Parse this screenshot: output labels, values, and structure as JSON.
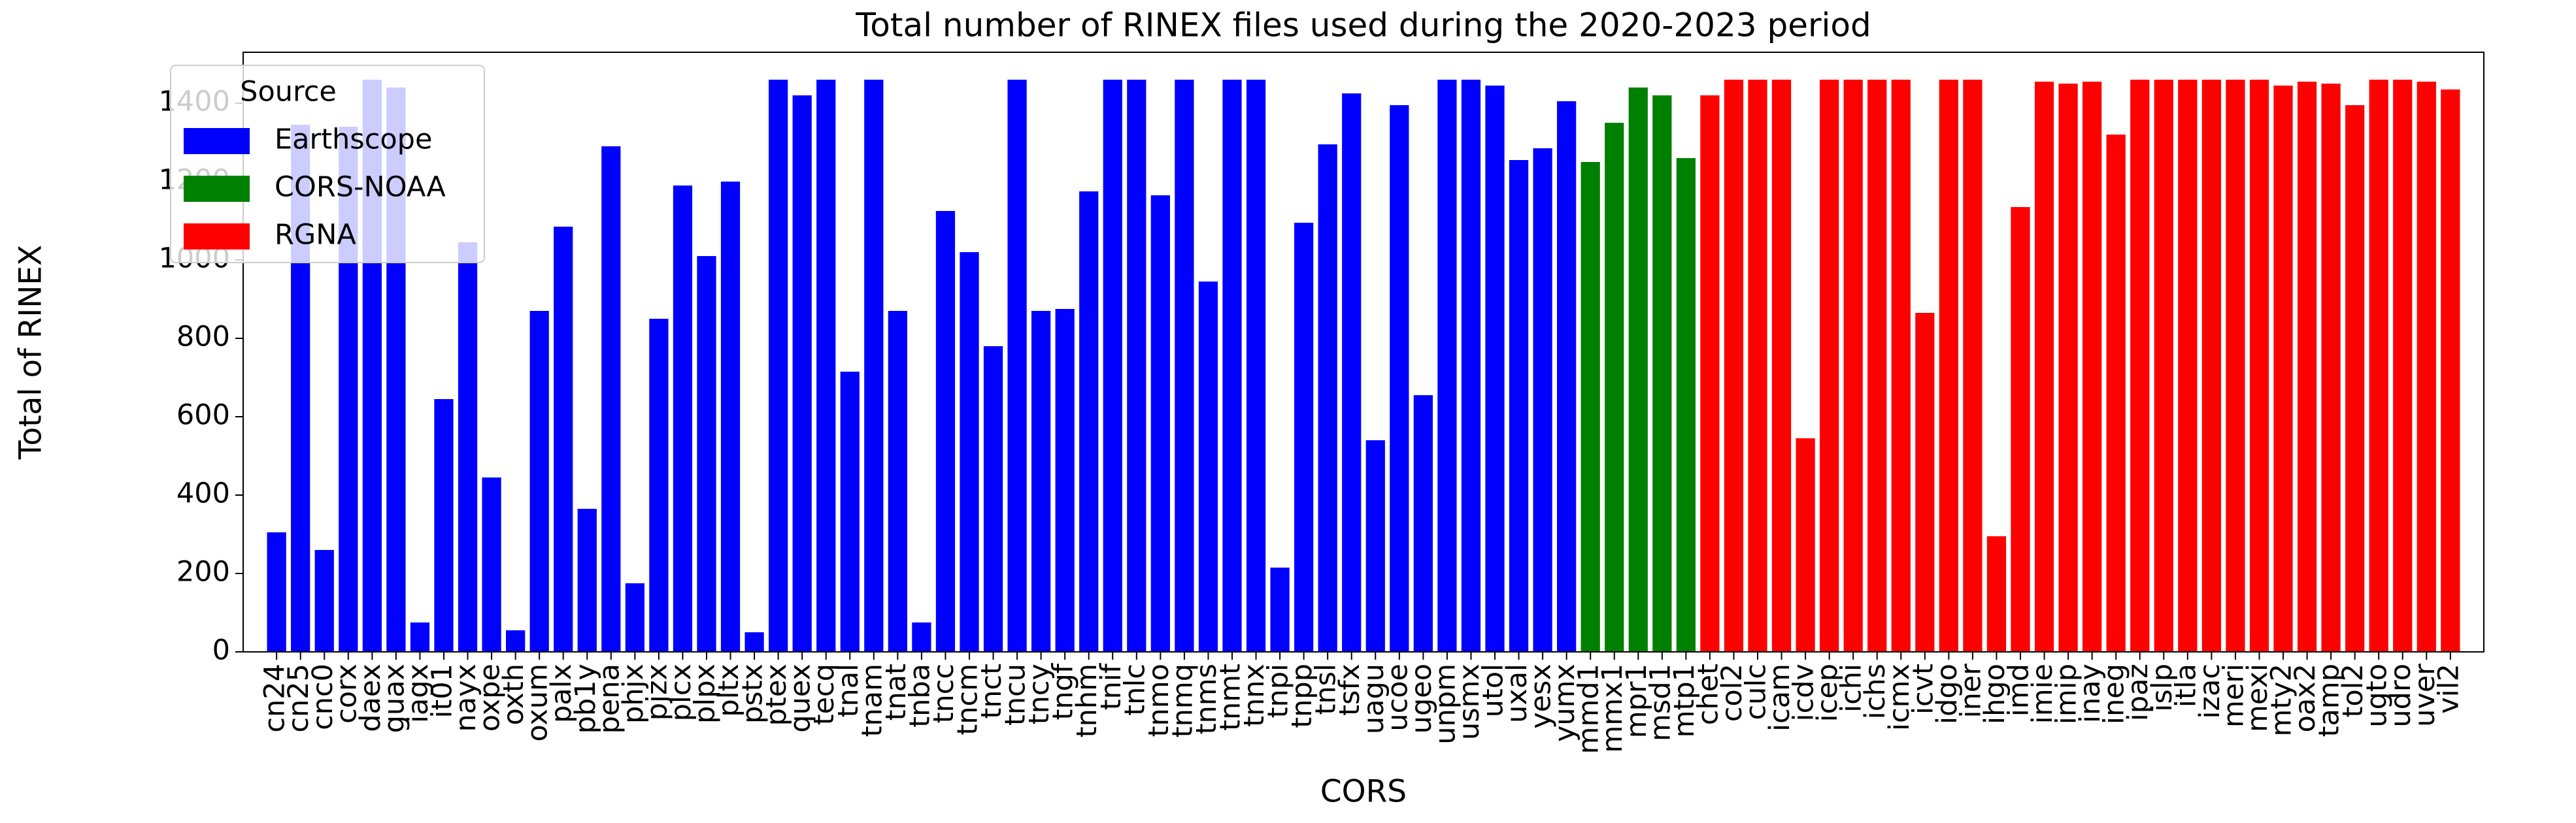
{
  "chart_data": {
    "type": "bar",
    "title": "Total number of RINEX files used during the 2020-2023 period",
    "x_label": "CORS",
    "y_label": "Total of RINEX",
    "legend_title": "Source",
    "legend_position": "upper left",
    "ylim": [
      0,
      1530
    ],
    "yticks": [
      0,
      200,
      400,
      600,
      800,
      1000,
      1200,
      1400
    ],
    "series": [
      {
        "name": "Earthscope",
        "color": "#0000ff",
        "categories": [
          "cn24",
          "cn25",
          "cnc0",
          "corx",
          "daex",
          "guax",
          "iagx",
          "it01",
          "nayx",
          "oxpe",
          "oxth",
          "oxum",
          "palx",
          "pb1y",
          "pena",
          "phjx",
          "pjzx",
          "plcx",
          "plpx",
          "pltx",
          "pstx",
          "ptex",
          "quex",
          "tecq",
          "tnal",
          "tnam",
          "tnat",
          "tnba",
          "tncc",
          "tncm",
          "tnct",
          "tncu",
          "tncy",
          "tngf",
          "tnhm",
          "tnif",
          "tnlc",
          "tnmo",
          "tnmq",
          "tnms",
          "tnmt",
          "tnnx",
          "tnpi",
          "tnpp",
          "tnsl",
          "tsfx",
          "uagu",
          "ucoe",
          "ugeo",
          "unpm",
          "usmx",
          "utol",
          "uxal",
          "yesx",
          "yumx"
        ],
        "values": [
          305,
          1345,
          260,
          1340,
          1460,
          1440,
          75,
          645,
          1045,
          445,
          55,
          870,
          1085,
          365,
          1290,
          175,
          850,
          1190,
          1010,
          1200,
          50,
          1460,
          1420,
          1460,
          715,
          1460,
          870,
          75,
          1125,
          1020,
          780,
          1460,
          870,
          875,
          1175,
          1460,
          1460,
          1165,
          1460,
          945,
          1460,
          1460,
          215,
          1095,
          1295,
          1425,
          540,
          1395,
          655,
          1460,
          1460,
          1445,
          1255,
          1285,
          1405
        ]
      },
      {
        "name": "CORS-NOAA",
        "color": "#008000",
        "categories": [
          "mmd1",
          "mmx1",
          "mpr1",
          "msd1",
          "mtp1"
        ],
        "values": [
          1250,
          1350,
          1440,
          1420,
          1260
        ]
      },
      {
        "name": "RGNA",
        "color": "#ff0000",
        "categories": [
          "chet",
          "col2",
          "culc",
          "icam",
          "icdv",
          "icep",
          "ichi",
          "ichs",
          "icmx",
          "icvt",
          "idgo",
          "iner",
          "ihgo",
          "imd",
          "imie",
          "imip",
          "inay",
          "ineg",
          "ipaz",
          "islp",
          "itla",
          "izac",
          "meri",
          "mexi",
          "mty2",
          "oax2",
          "tamp",
          "tol2",
          "ugto",
          "udro",
          "uver",
          "vil2"
        ],
        "values": [
          1420,
          1460,
          1460,
          1460,
          545,
          1460,
          1460,
          1460,
          1460,
          865,
          1460,
          1460,
          295,
          1135,
          1455,
          1450,
          1455,
          1320,
          1460,
          1460,
          1460,
          1460,
          1460,
          1460,
          1445,
          1455,
          1450,
          1395,
          1460,
          1460,
          1455,
          1435
        ]
      }
    ]
  }
}
